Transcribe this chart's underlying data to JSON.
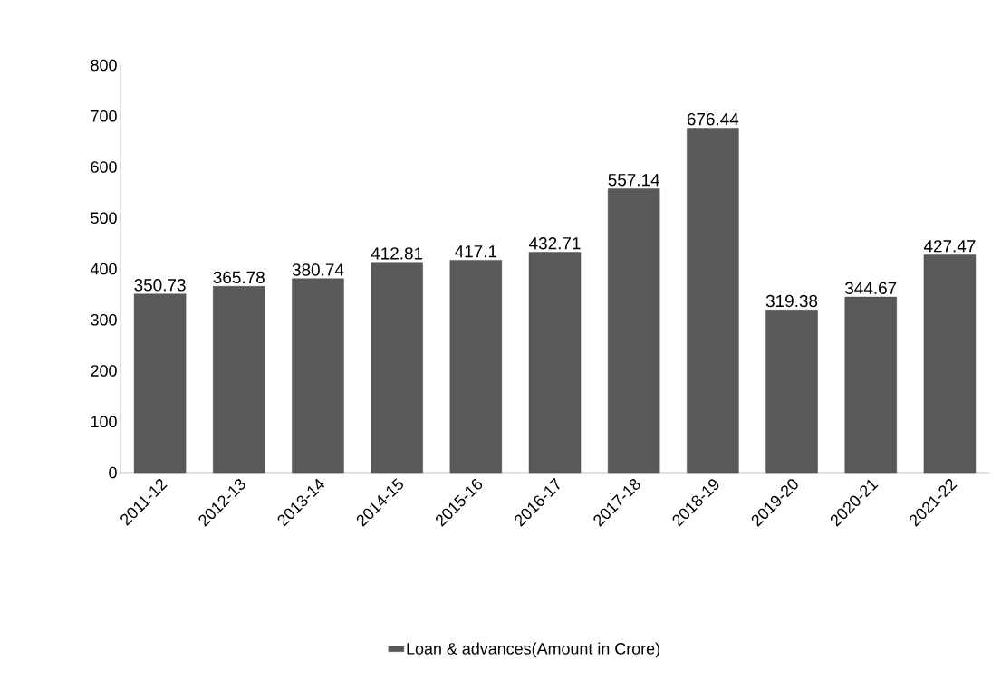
{
  "chart_data": {
    "type": "bar",
    "categories": [
      "2011-12",
      "2012-13",
      "2013-14",
      "2014-15",
      "2015-16",
      "2016-17",
      "2017-18",
      "2018-19",
      "2019-20",
      "2020-21",
      "2021-22"
    ],
    "series": [
      {
        "name": "Loan & advances(Amount in Crore)",
        "color": "#595959",
        "values": [
          350.73,
          365.78,
          380.74,
          412.81,
          417.1,
          432.71,
          557.14,
          676.44,
          319.38,
          344.67,
          427.47
        ]
      }
    ],
    "ylim": [
      0,
      800
    ],
    "yticks": [
      0,
      100,
      200,
      300,
      400,
      500,
      600,
      700,
      800
    ],
    "data_labels": true,
    "legend": "bottom",
    "grid": false
  }
}
